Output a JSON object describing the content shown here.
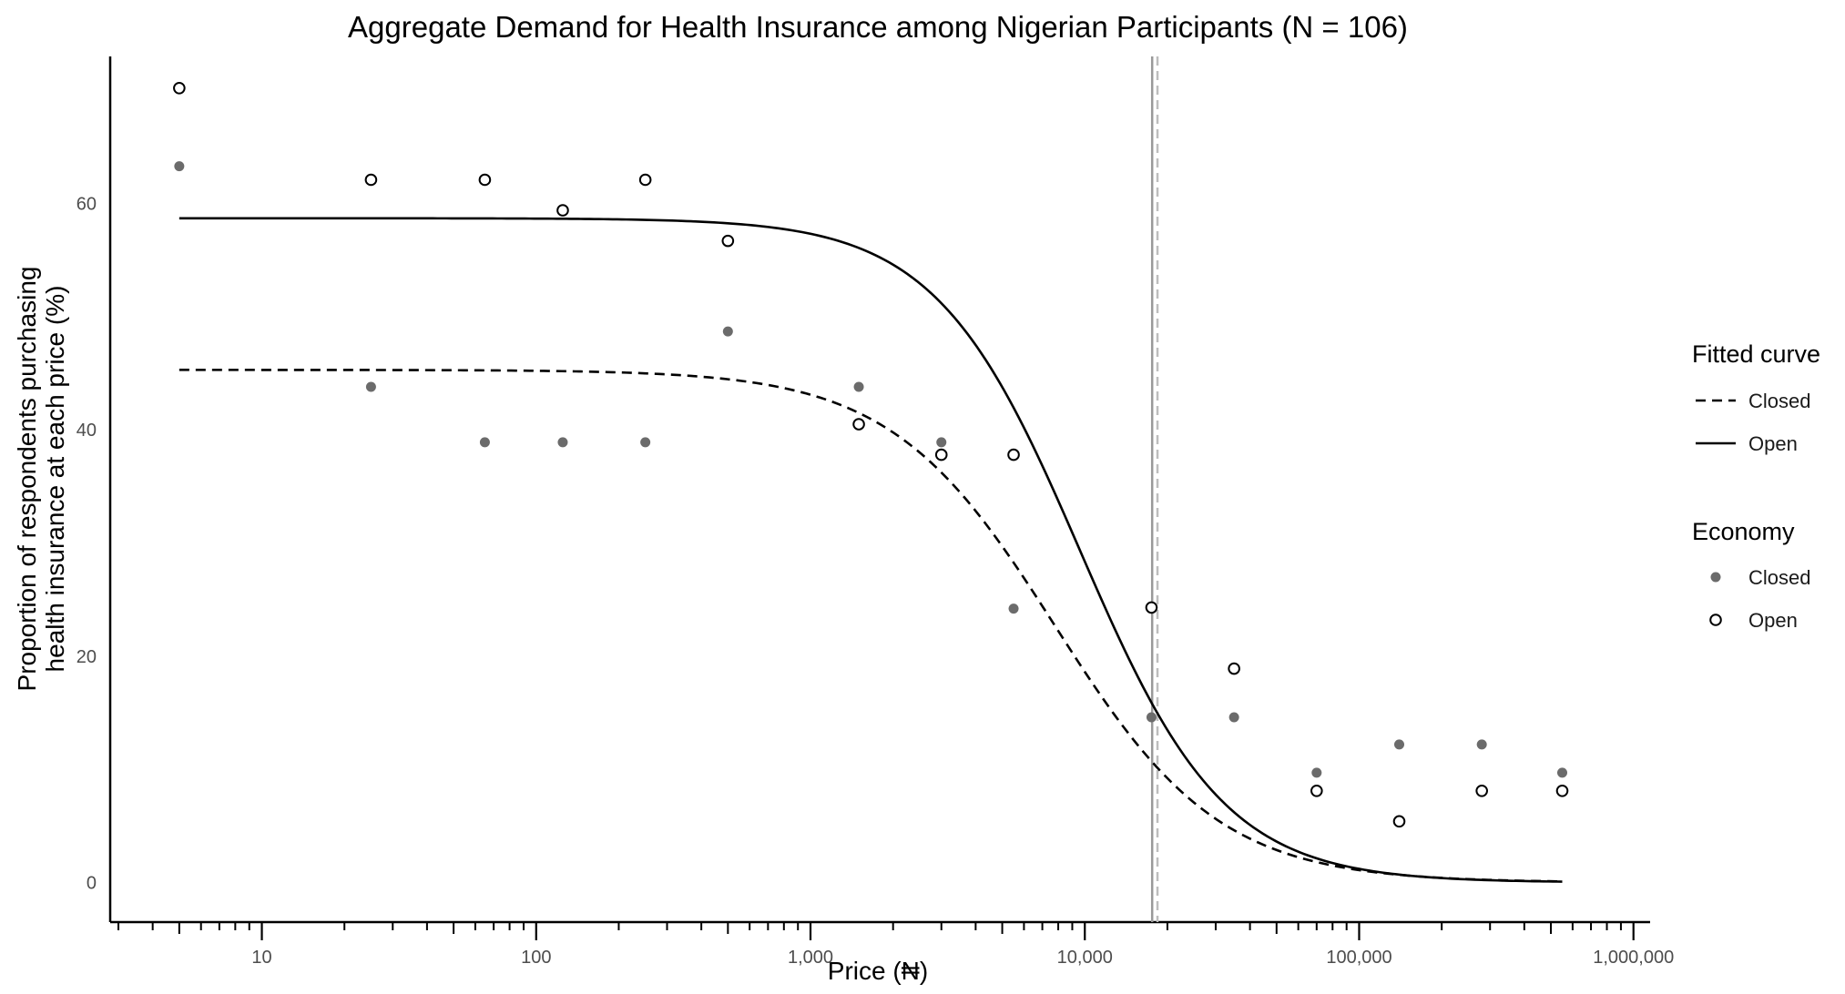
{
  "chart_data": {
    "type": "scatter",
    "title": "Aggregate Demand for Health Insurance among Nigerian Participants (N = 106)",
    "xlabel": "Price (₦)",
    "ylabel_lines": [
      "Proportion of respondents purchasing",
      "health insurance at each price (%)"
    ],
    "x_scale": "log10",
    "xlim": [
      2.8,
      1150000
    ],
    "ylim": [
      -3.5,
      73
    ],
    "x_ticks": [
      10,
      100,
      1000,
      10000,
      100000,
      1000000
    ],
    "x_tick_labels": [
      "10",
      "100",
      "1,000",
      "10,000",
      "100,000",
      "1,000,000"
    ],
    "y_ticks": [
      0,
      20,
      40,
      60
    ],
    "y_tick_labels": [
      "0",
      "20",
      "40",
      "60"
    ],
    "grid": false,
    "legend_position": "right",
    "points": [
      {
        "name": "Closed",
        "marker": "filled",
        "color": "#6b6b6b",
        "x": [
          5,
          25,
          65,
          125,
          250,
          500,
          1500,
          3000,
          5500,
          17500,
          35000,
          70000,
          140000,
          280000,
          550000
        ],
        "y": [
          63.3,
          43.8,
          38.9,
          38.9,
          38.9,
          48.7,
          43.8,
          38.9,
          24.2,
          14.6,
          14.6,
          9.7,
          12.2,
          12.2,
          9.7
        ]
      },
      {
        "name": "Open",
        "marker": "hollow",
        "color": "#000000",
        "x": [
          5,
          25,
          65,
          125,
          250,
          500,
          1500,
          3000,
          5500,
          17500,
          35000,
          70000,
          140000,
          280000,
          550000
        ],
        "y": [
          70.2,
          62.1,
          62.1,
          59.4,
          62.1,
          56.7,
          40.5,
          37.8,
          37.8,
          24.3,
          18.9,
          8.1,
          5.4,
          8.1,
          8.1
        ]
      }
    ],
    "fitted_curves": [
      {
        "name": "Closed",
        "style": "dashed",
        "asymptote": 45.3,
        "x50": 7800,
        "slope": 1.45,
        "x_range": [
          5,
          550000
        ]
      },
      {
        "name": "Open",
        "style": "solid",
        "asymptote": 58.7,
        "x50": 9600,
        "slope": 1.65,
        "x_range": [
          5,
          550000
        ]
      }
    ],
    "reference_lines": [
      {
        "orientation": "vertical",
        "x": 17600,
        "style": "solid",
        "color": "#999999"
      },
      {
        "orientation": "vertical",
        "x": 18400,
        "style": "dashed",
        "color": "#bdbdbd"
      }
    ],
    "legend": {
      "fitted_title": "Fitted curve",
      "fitted_items": [
        {
          "label": "Closed",
          "style": "dashed"
        },
        {
          "label": "Open",
          "style": "solid"
        }
      ],
      "economy_title": "Economy",
      "economy_items": [
        {
          "label": "Closed",
          "marker": "filled"
        },
        {
          "label": "Open",
          "marker": "hollow"
        }
      ]
    }
  }
}
